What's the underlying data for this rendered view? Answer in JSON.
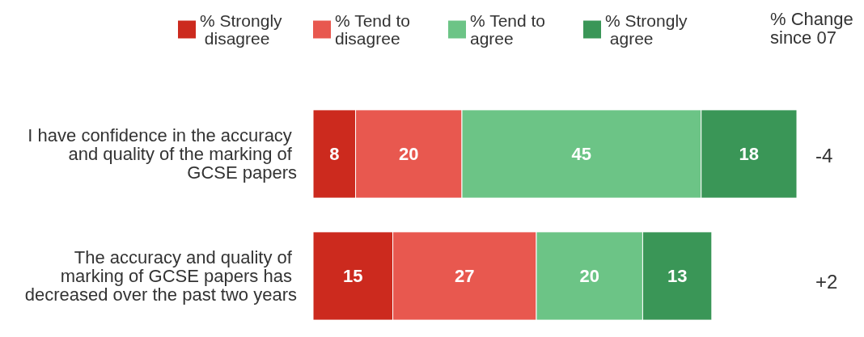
{
  "chart_data": {
    "type": "bar",
    "orientation": "horizontal",
    "stacked": true,
    "data_labels": true,
    "legend": "top",
    "tick_labels": "y",
    "categories": [
      "I have confidence in the accuracy and quality of the marking of GCSE papers",
      "The accuracy and quality of marking of GCSE papers has decreased over the past two years"
    ],
    "series": [
      {
        "name": "% Strongly disagree",
        "color": "#cc2a1e",
        "values": [
          8,
          15
        ]
      },
      {
        "name": "% Tend to disagree",
        "color": "#e8584f",
        "values": [
          20,
          27
        ]
      },
      {
        "name": "% Tend to agree",
        "color": "#6cc486",
        "values": [
          45,
          20
        ]
      },
      {
        "name": "% Strongly agree",
        "color": "#3a9657",
        "values": [
          18,
          13
        ]
      }
    ],
    "annotations": [
      "% Change since 07",
      "-4",
      "+2"
    ]
  }
}
